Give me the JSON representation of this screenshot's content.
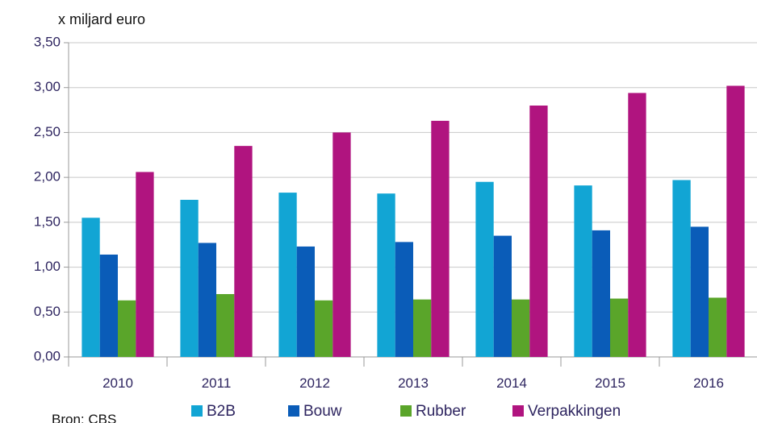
{
  "chart_data": {
    "type": "bar",
    "title": "x miljard euro",
    "source": "Bron: CBS",
    "categories": [
      "2010",
      "2011",
      "2012",
      "2013",
      "2014",
      "2015",
      "2016"
    ],
    "series": [
      {
        "name": "B2B",
        "color": "#12a5d4",
        "values": [
          1.55,
          1.75,
          1.83,
          1.82,
          1.95,
          1.91,
          1.97
        ]
      },
      {
        "name": "Bouw",
        "color": "#0a5cb8",
        "values": [
          1.14,
          1.27,
          1.23,
          1.28,
          1.35,
          1.41,
          1.45
        ]
      },
      {
        "name": "Rubber",
        "color": "#5aa52a",
        "values": [
          0.63,
          0.7,
          0.63,
          0.64,
          0.64,
          0.65,
          0.66
        ]
      },
      {
        "name": "Verpakkingen",
        "color": "#b0147f",
        "values": [
          2.06,
          2.35,
          2.5,
          2.63,
          2.8,
          2.94,
          3.02
        ]
      }
    ],
    "ylim": [
      0,
      3.5
    ],
    "yticks": [
      {
        "value": 0,
        "label": "0,00"
      },
      {
        "value": 0.5,
        "label": "0,50"
      },
      {
        "value": 1,
        "label": "1,00"
      },
      {
        "value": 1.5,
        "label": "1,50"
      },
      {
        "value": 2,
        "label": "2,00"
      },
      {
        "value": 2.5,
        "label": "2,50"
      },
      {
        "value": 3,
        "label": "3,00"
      },
      {
        "value": 3.5,
        "label": "3,50"
      }
    ],
    "grid": true
  }
}
